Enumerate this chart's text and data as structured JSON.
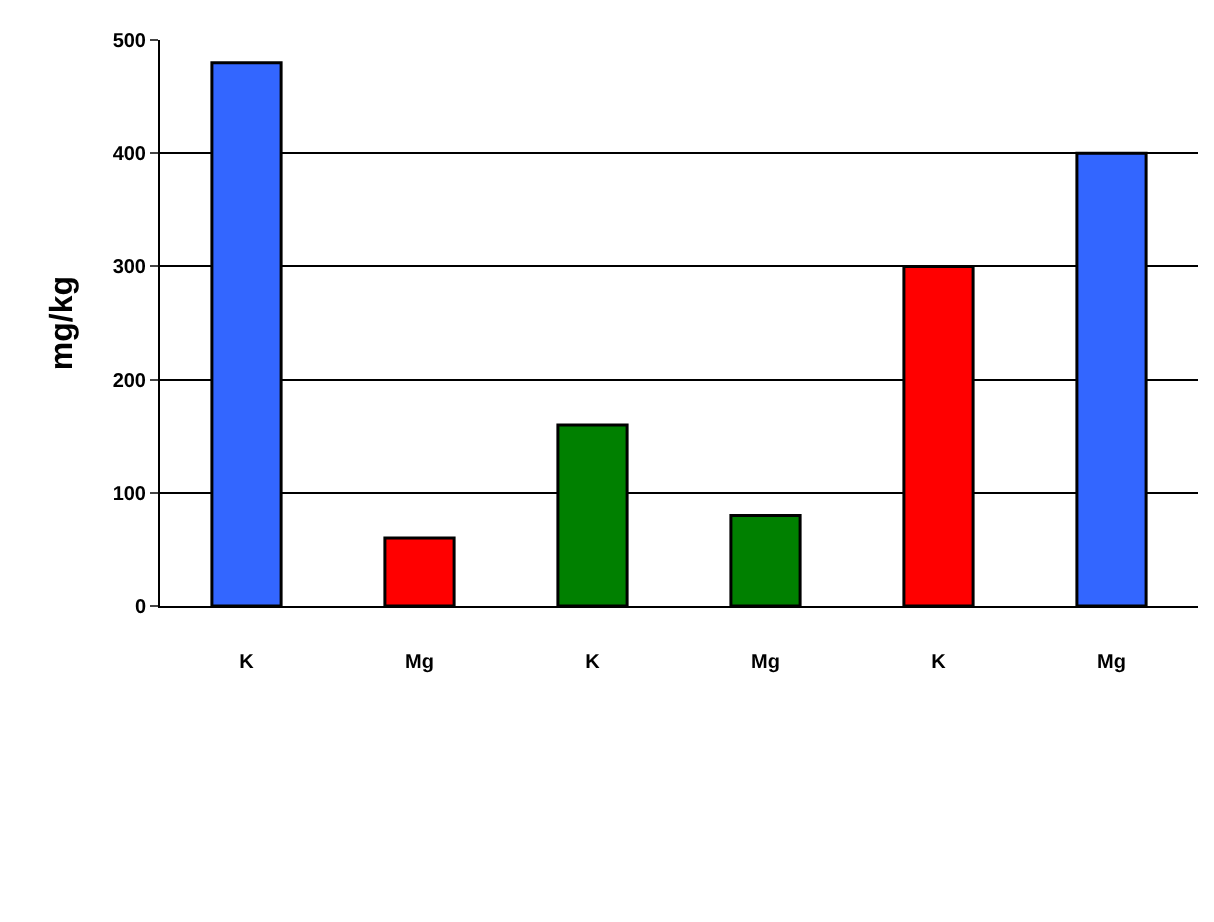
{
  "chart_data": {
    "type": "bar",
    "ylabel": "mg/kg",
    "categories": [
      "K",
      "Mg",
      "K",
      "Mg",
      "K",
      "Mg"
    ],
    "values": [
      480,
      60,
      160,
      80,
      300,
      400
    ],
    "colors": [
      "#3366ff",
      "#ff0000",
      "#008000",
      "#008000",
      "#ff0000",
      "#3366ff"
    ],
    "ylim": [
      0,
      500
    ],
    "yticks": [
      0,
      100,
      200,
      300,
      400,
      500
    ],
    "grid": "y"
  }
}
